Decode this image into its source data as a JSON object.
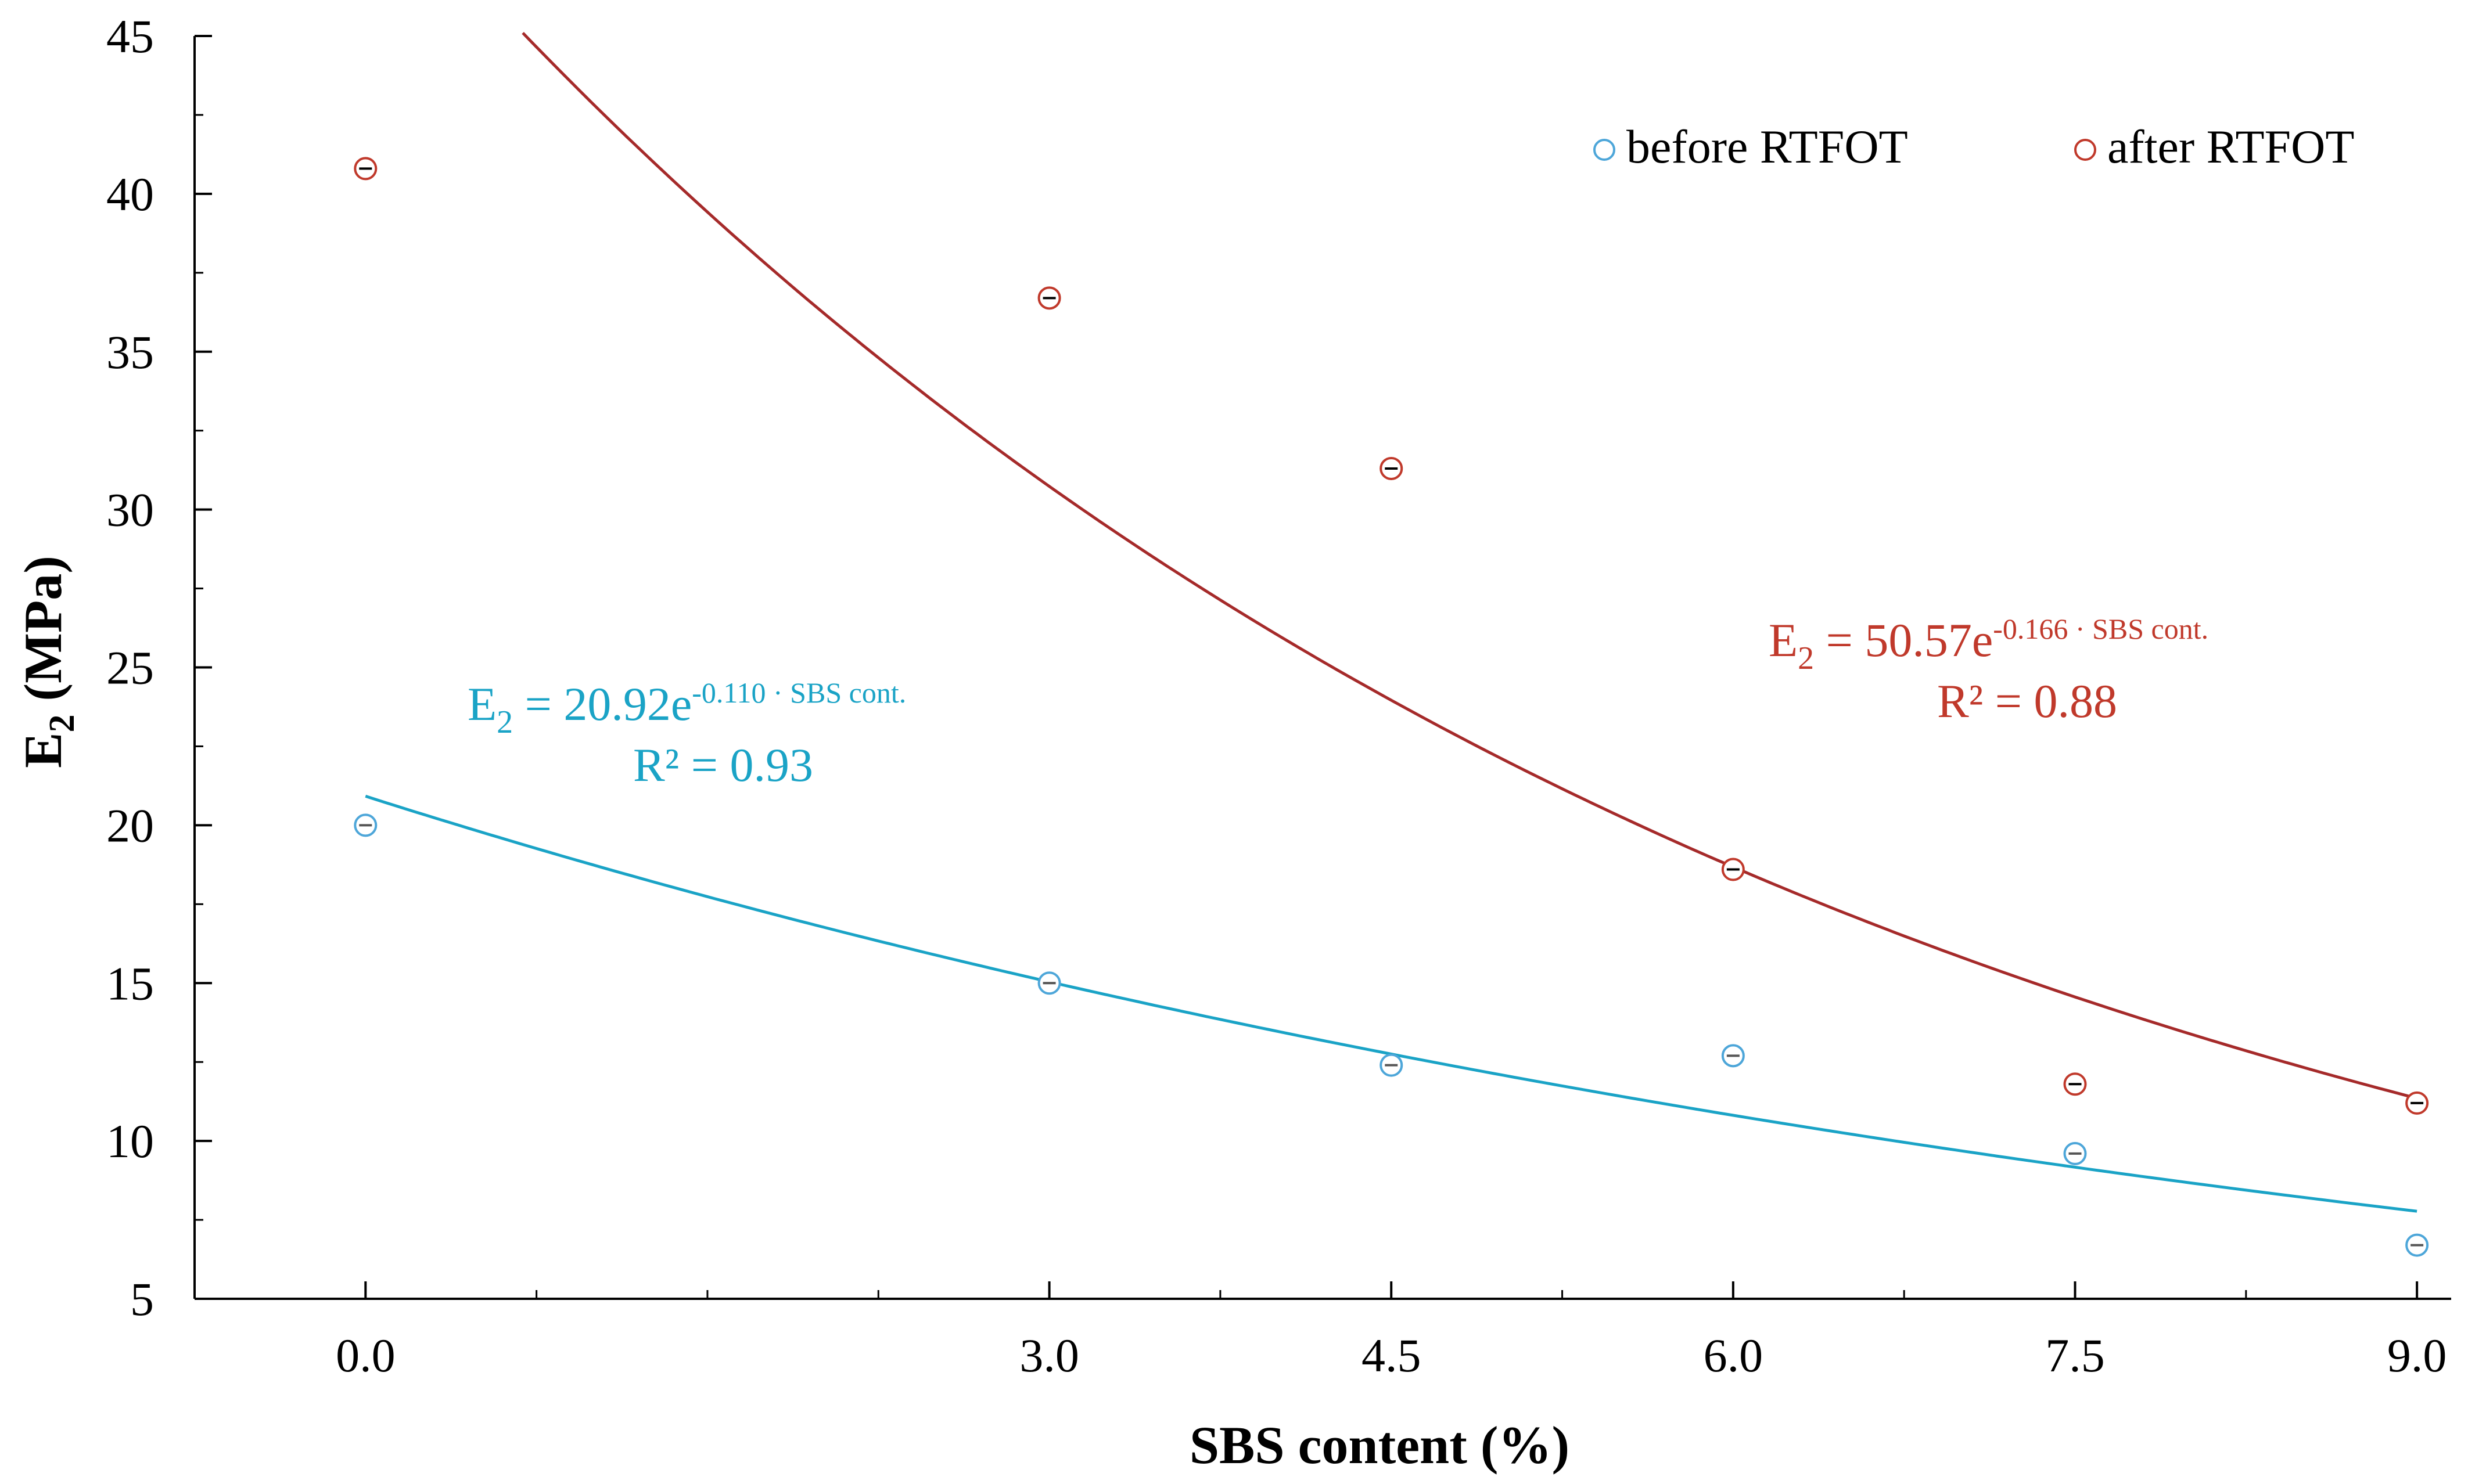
{
  "chart_data": {
    "type": "scatter",
    "title": "",
    "xlabel": "SBS content (%)",
    "ylabel_main": "E",
    "ylabel_sub": "2",
    "ylabel_unit": "(MPa)",
    "xlim": [
      -0.75,
      9.15
    ],
    "ylim": [
      5,
      45
    ],
    "x_ticks": [
      0.0,
      3.0,
      4.5,
      6.0,
      7.5,
      9.0
    ],
    "x_tick_labels": [
      "0.0",
      "3.0",
      "4.5",
      "6.0",
      "7.5",
      "9.0"
    ],
    "y_ticks": [
      5,
      10,
      15,
      20,
      25,
      30,
      35,
      40,
      45
    ],
    "y_tick_labels": [
      "5",
      "10",
      "15",
      "20",
      "25",
      "30",
      "35",
      "40",
      "45"
    ],
    "legend_position": "top-right",
    "series": [
      {
        "name": "before RTFOT",
        "color": "#4da6d9",
        "fit_color": "#1aa3c6",
        "x": [
          0.0,
          3.0,
          4.5,
          6.0,
          7.5,
          9.0
        ],
        "y": [
          20.0,
          15.0,
          12.4,
          12.7,
          9.6,
          6.7
        ],
        "fit": {
          "a": 20.92,
          "b": -0.11,
          "x_start": 0.0,
          "x_end": 9.0
        },
        "equation": {
          "lhs": "E",
          "sub": "2",
          "mid": " = 20.92e",
          "exp": "-0.110 · SBS cont.",
          "r2": "R² = 0.93"
        }
      },
      {
        "name": "after RTFOT",
        "color": "#c0392b",
        "fit_color": "#a52a2a",
        "x": [
          0.0,
          3.0,
          4.5,
          6.0,
          7.5,
          9.0
        ],
        "y": [
          40.8,
          36.7,
          31.3,
          18.6,
          11.8,
          11.2
        ],
        "fit": {
          "a": 50.57,
          "b": -0.166,
          "x_start": 0.69,
          "x_end": 9.0
        },
        "equation": {
          "lhs": "E",
          "sub": "2",
          "mid": " = 50.57e",
          "exp": "-0.166 · SBS cont.",
          "r2": "R² = 0.88"
        }
      }
    ]
  }
}
